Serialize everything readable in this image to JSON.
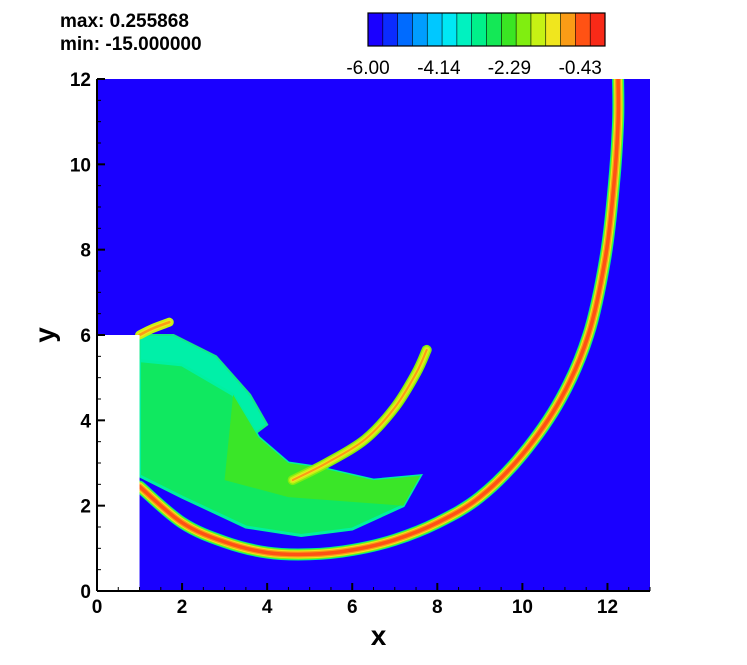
{
  "annotations": {
    "max_label": "max: 0.255868",
    "min_label": "min: -15.000000"
  },
  "chart_data": {
    "type": "heatmap",
    "title": "",
    "xlabel": "x",
    "ylabel": "y",
    "xlim": [
      0,
      13
    ],
    "ylim": [
      0,
      12
    ],
    "x_ticks": [
      0,
      2,
      4,
      6,
      8,
      10,
      12
    ],
    "y_ticks": [
      0,
      2,
      4,
      6,
      8,
      10,
      12
    ],
    "grid": false,
    "colorbar": {
      "placement": "top",
      "min": -6.0,
      "max": 0.22,
      "tick_values": [
        -6.0,
        -4.14,
        -2.29,
        -0.43
      ],
      "tick_labels": [
        "-6.00",
        "-4.14",
        "-2.29",
        "-0.43"
      ],
      "levels": 15,
      "colors": [
        "#1a00ff",
        "#0b2cff",
        "#006bff",
        "#009dff",
        "#00c8ff",
        "#00e8f4",
        "#00f2c0",
        "#00f08a",
        "#14e856",
        "#3ae623",
        "#80ee10",
        "#c6f214",
        "#f0e61e",
        "#fa9c16",
        "#ff5214",
        "#f82a18"
      ]
    },
    "domain_blank_region": {
      "x": [
        0,
        1
      ],
      "y": [
        0,
        6
      ],
      "note": "solid step (no data)"
    },
    "background_value": -6.0,
    "features": [
      {
        "name": "bow shock",
        "value_peak": 0.0,
        "path": [
          [
            1.0,
            2.45
          ],
          [
            2.0,
            1.6
          ],
          [
            3.0,
            1.15
          ],
          [
            4.0,
            0.9
          ],
          [
            5.0,
            0.86
          ],
          [
            6.0,
            0.96
          ],
          [
            7.0,
            1.2
          ],
          [
            8.0,
            1.6
          ],
          [
            9.0,
            2.2
          ],
          [
            10.0,
            3.2
          ],
          [
            10.9,
            4.5
          ],
          [
            11.55,
            6.0
          ],
          [
            11.95,
            7.8
          ],
          [
            12.15,
            9.5
          ],
          [
            12.25,
            11.0
          ],
          [
            12.25,
            12.0
          ]
        ]
      },
      {
        "name": "oblique shock",
        "value_peak": -0.9,
        "path": [
          [
            4.6,
            2.6
          ],
          [
            5.4,
            3.0
          ],
          [
            6.3,
            3.55
          ],
          [
            7.0,
            4.3
          ],
          [
            7.5,
            5.1
          ],
          [
            7.75,
            5.65
          ]
        ]
      },
      {
        "name": "corner expansion",
        "value_peak": -1.0,
        "path": [
          [
            1.0,
            6.0
          ],
          [
            1.3,
            6.15
          ],
          [
            1.7,
            6.3
          ]
        ]
      },
      {
        "name": "plume lobe upper",
        "value_peak": -3.8,
        "boundary": [
          [
            1.0,
            6.0
          ],
          [
            1.8,
            6.0
          ],
          [
            2.8,
            5.5
          ],
          [
            3.6,
            4.6
          ],
          [
            4.0,
            3.9
          ],
          [
            3.6,
            3.6
          ],
          [
            2.8,
            4.3
          ],
          [
            1.8,
            4.9
          ],
          [
            1.0,
            5.1
          ]
        ]
      },
      {
        "name": "plume core",
        "value_peak": -2.7,
        "boundary": [
          [
            1.0,
            5.4
          ],
          [
            2.0,
            5.3
          ],
          [
            3.2,
            4.6
          ],
          [
            3.8,
            3.6
          ],
          [
            4.5,
            3.0
          ],
          [
            5.2,
            2.9
          ],
          [
            6.5,
            2.6
          ],
          [
            7.6,
            2.7
          ],
          [
            7.2,
            2.0
          ],
          [
            6.0,
            1.45
          ],
          [
            4.8,
            1.3
          ],
          [
            3.5,
            1.5
          ],
          [
            2.0,
            2.2
          ],
          [
            1.0,
            2.7
          ]
        ]
      }
    ]
  }
}
